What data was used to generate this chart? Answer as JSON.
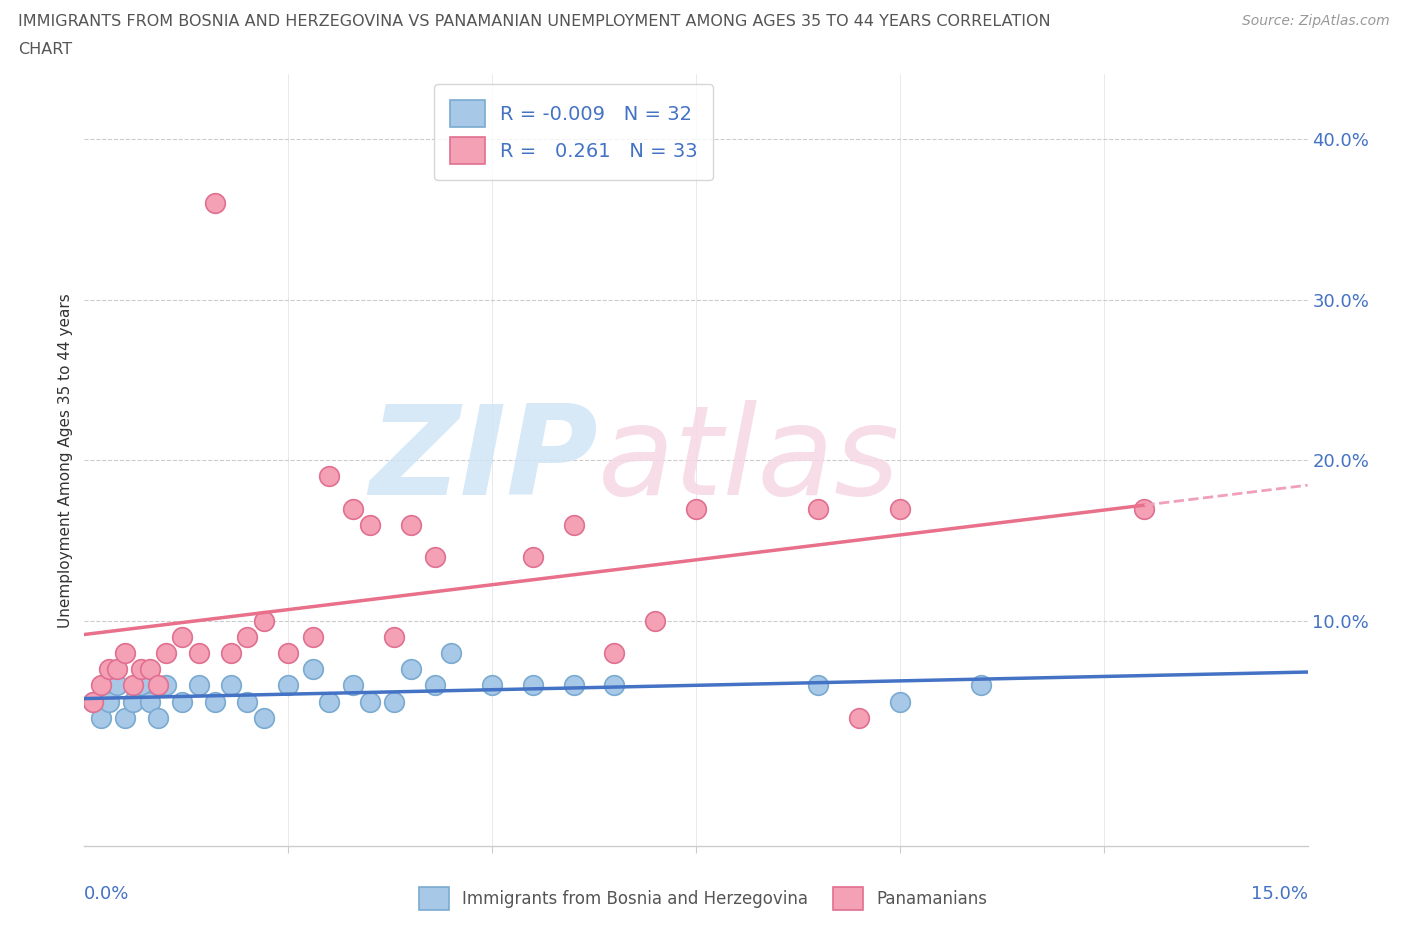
{
  "title_line1": "IMMIGRANTS FROM BOSNIA AND HERZEGOVINA VS PANAMANIAN UNEMPLOYMENT AMONG AGES 35 TO 44 YEARS CORRELATION",
  "title_line2": "CHART",
  "source": "Source: ZipAtlas.com",
  "ylabel": "Unemployment Among Ages 35 to 44 years",
  "ytick_vals": [
    0.1,
    0.2,
    0.3,
    0.4
  ],
  "ytick_labels": [
    "10.0%",
    "20.0%",
    "30.0%",
    "40.0%"
  ],
  "xlim": [
    0.0,
    0.15
  ],
  "ylim": [
    -0.04,
    0.44
  ],
  "legend1_label": "R = -0.009   N = 32",
  "legend2_label": "R =   0.261   N = 33",
  "dot1_color": "#a8c8e8",
  "dot2_color": "#f4a0b5",
  "dot1_edge": "#7aaad0",
  "dot2_edge": "#e07090",
  "line1_color": "#4472c4",
  "line2_color": "#e8708a",
  "line2_dash_color": "#f0a0b8",
  "axis_color": "#4472c4",
  "grid_color": "#cccccc",
  "title_color": "#555555",
  "source_color": "#999999",
  "ylabel_color": "#333333",
  "watermark_zip_color": "#d0e4f5",
  "watermark_atlas_color": "#f5d8e4",
  "bosnia_x": [
    0.001,
    0.002,
    0.003,
    0.004,
    0.005,
    0.006,
    0.007,
    0.008,
    0.009,
    0.01,
    0.012,
    0.014,
    0.016,
    0.018,
    0.02,
    0.022,
    0.025,
    0.028,
    0.03,
    0.033,
    0.035,
    0.038,
    0.04,
    0.043,
    0.045,
    0.05,
    0.055,
    0.06,
    0.065,
    0.09,
    0.1,
    0.11
  ],
  "bosnia_y": [
    0.05,
    0.04,
    0.05,
    0.06,
    0.04,
    0.05,
    0.06,
    0.05,
    0.04,
    0.06,
    0.05,
    0.06,
    0.05,
    0.06,
    0.05,
    0.04,
    0.06,
    0.07,
    0.05,
    0.06,
    0.05,
    0.05,
    0.07,
    0.06,
    0.08,
    0.06,
    0.06,
    0.06,
    0.06,
    0.06,
    0.05,
    0.06
  ],
  "panama_x": [
    0.001,
    0.002,
    0.003,
    0.004,
    0.005,
    0.006,
    0.007,
    0.008,
    0.009,
    0.01,
    0.012,
    0.014,
    0.016,
    0.018,
    0.02,
    0.022,
    0.025,
    0.028,
    0.03,
    0.033,
    0.035,
    0.038,
    0.04,
    0.043,
    0.055,
    0.06,
    0.065,
    0.07,
    0.075,
    0.09,
    0.095,
    0.1,
    0.13
  ],
  "panama_y": [
    0.05,
    0.06,
    0.07,
    0.07,
    0.08,
    0.06,
    0.07,
    0.07,
    0.06,
    0.08,
    0.09,
    0.08,
    0.36,
    0.08,
    0.09,
    0.1,
    0.08,
    0.09,
    0.19,
    0.17,
    0.16,
    0.09,
    0.16,
    0.14,
    0.14,
    0.16,
    0.08,
    0.1,
    0.17,
    0.17,
    0.04,
    0.17,
    0.17
  ]
}
